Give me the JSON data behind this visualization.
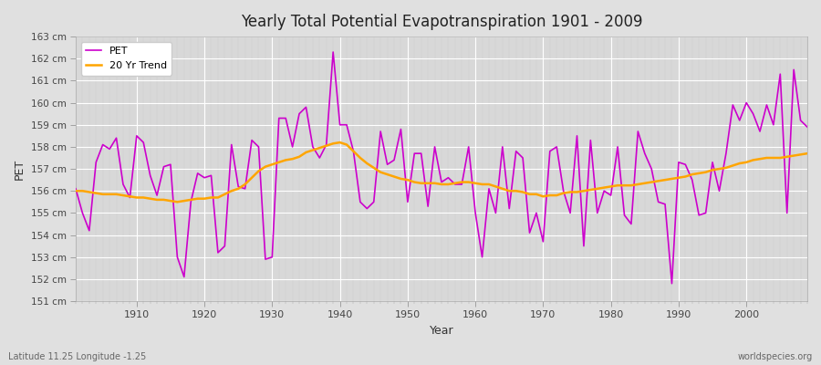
{
  "title": "Yearly Total Potential Evapotranspiration 1901 - 2009",
  "xlabel": "Year",
  "ylabel": "PET",
  "subtitle": "Latitude 11.25 Longitude -1.25",
  "watermark": "worldspecies.org",
  "pet_color": "#CC00CC",
  "trend_color": "#FFA500",
  "fig_bg_color": "#E0E0E0",
  "plot_bg_color": "#D8D8D8",
  "grid_color": "#FFFFFF",
  "ylim": [
    151,
    163
  ],
  "xlim": [
    1901,
    2009
  ],
  "years": [
    1901,
    1902,
    1903,
    1904,
    1905,
    1906,
    1907,
    1908,
    1909,
    1910,
    1911,
    1912,
    1913,
    1914,
    1915,
    1916,
    1917,
    1918,
    1919,
    1920,
    1921,
    1922,
    1923,
    1924,
    1925,
    1926,
    1927,
    1928,
    1929,
    1930,
    1931,
    1932,
    1933,
    1934,
    1935,
    1936,
    1937,
    1938,
    1939,
    1940,
    1941,
    1942,
    1943,
    1944,
    1945,
    1946,
    1947,
    1948,
    1949,
    1950,
    1951,
    1952,
    1953,
    1954,
    1955,
    1956,
    1957,
    1958,
    1959,
    1960,
    1961,
    1962,
    1963,
    1964,
    1965,
    1966,
    1967,
    1968,
    1969,
    1970,
    1971,
    1972,
    1973,
    1974,
    1975,
    1976,
    1977,
    1978,
    1979,
    1980,
    1981,
    1982,
    1983,
    1984,
    1985,
    1986,
    1987,
    1988,
    1989,
    1990,
    1991,
    1992,
    1993,
    1994,
    1995,
    1996,
    1997,
    1998,
    1999,
    2000,
    2001,
    2002,
    2003,
    2004,
    2005,
    2006,
    2007,
    2008,
    2009
  ],
  "pet_values": [
    156.1,
    155.0,
    154.2,
    157.3,
    158.1,
    157.9,
    158.4,
    156.3,
    155.7,
    158.5,
    158.2,
    156.7,
    155.8,
    157.1,
    157.2,
    153.0,
    152.1,
    155.5,
    156.8,
    156.6,
    156.7,
    153.2,
    153.5,
    158.1,
    156.2,
    156.1,
    158.3,
    158.0,
    152.9,
    153.0,
    159.3,
    159.3,
    158.0,
    159.5,
    159.8,
    158.0,
    157.5,
    158.1,
    162.3,
    159.0,
    159.0,
    157.8,
    155.5,
    155.2,
    155.5,
    158.7,
    157.2,
    157.4,
    158.8,
    155.5,
    157.7,
    157.7,
    155.3,
    158.0,
    156.4,
    156.6,
    156.3,
    156.3,
    158.0,
    155.0,
    153.0,
    156.1,
    155.0,
    158.0,
    155.2,
    157.8,
    157.5,
    154.1,
    155.0,
    153.7,
    157.8,
    158.0,
    156.0,
    155.0,
    158.5,
    153.5,
    158.3,
    155.0,
    156.0,
    155.8,
    158.0,
    154.9,
    154.5,
    158.7,
    157.7,
    157.0,
    155.5,
    155.4,
    151.8,
    157.3,
    157.2,
    156.5,
    154.9,
    155.0,
    157.3,
    156.0,
    157.7,
    159.9,
    159.2,
    160.0,
    159.5,
    158.7,
    159.9,
    159.0,
    161.3,
    155.0,
    161.5,
    159.2,
    158.9
  ],
  "trend_values": [
    156.0,
    156.0,
    155.95,
    155.9,
    155.85,
    155.85,
    155.85,
    155.8,
    155.75,
    155.7,
    155.7,
    155.65,
    155.6,
    155.6,
    155.55,
    155.5,
    155.55,
    155.6,
    155.65,
    155.65,
    155.7,
    155.7,
    155.85,
    156.0,
    156.1,
    156.3,
    156.6,
    156.9,
    157.1,
    157.2,
    157.3,
    157.4,
    157.45,
    157.55,
    157.75,
    157.85,
    157.95,
    158.05,
    158.15,
    158.2,
    158.1,
    157.8,
    157.5,
    157.25,
    157.05,
    156.85,
    156.75,
    156.65,
    156.55,
    156.5,
    156.4,
    156.35,
    156.35,
    156.35,
    156.3,
    156.3,
    156.35,
    156.4,
    156.4,
    156.35,
    156.3,
    156.3,
    156.2,
    156.1,
    156.0,
    156.0,
    155.95,
    155.85,
    155.85,
    155.75,
    155.8,
    155.8,
    155.9,
    155.95,
    155.95,
    156.0,
    156.05,
    156.1,
    156.15,
    156.2,
    156.25,
    156.25,
    156.25,
    156.3,
    156.35,
    156.4,
    156.45,
    156.5,
    156.55,
    156.6,
    156.65,
    156.75,
    156.8,
    156.85,
    156.95,
    157.0,
    157.05,
    157.15,
    157.25,
    157.3,
    157.4,
    157.45,
    157.5,
    157.5,
    157.5,
    157.55,
    157.6,
    157.65,
    157.7
  ]
}
